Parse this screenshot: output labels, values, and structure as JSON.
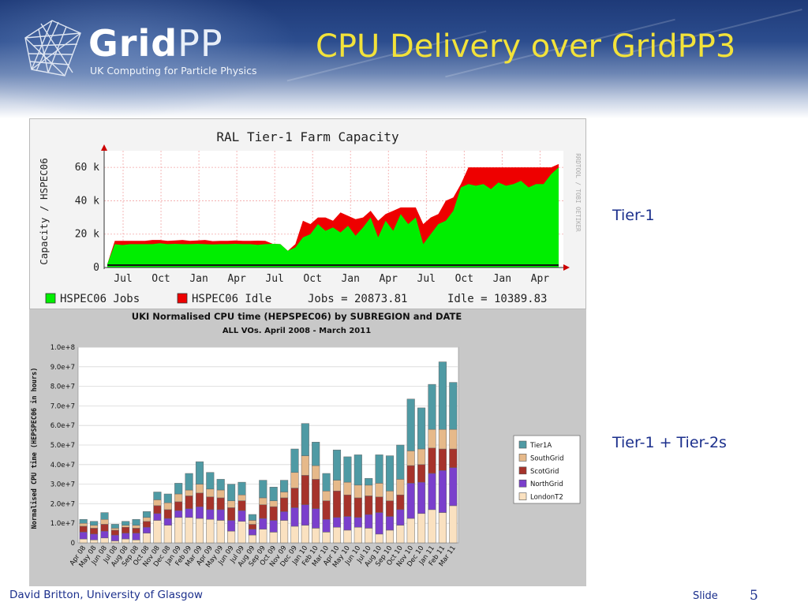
{
  "header": {
    "logo_text_grid": "Grid",
    "logo_text_pp": "PP",
    "logo_tagline": "UK Computing for Particle Physics",
    "title": "CPU Delivery over GridPP3"
  },
  "labels": {
    "tier1": "Tier-1",
    "tier12": "Tier-1 + Tier-2s"
  },
  "footer": {
    "author": "David Britton, University of Glasgow",
    "slide_label": "Slide",
    "slide_number": "5"
  },
  "colors": {
    "title": "#f2e23a",
    "label_text": "#1b2f8c",
    "rrd_jobs": "#00ee00",
    "rrd_idle": "#ee0000",
    "Tier1A": "#4f9aa4",
    "SouthGrid": "#e6b98a",
    "ScotGrid": "#a6332b",
    "NorthGrid": "#7a3fcc",
    "LondonT2": "#fae1c0"
  },
  "chart_data": [
    {
      "type": "area",
      "title": "RAL Tier-1 Farm Capacity",
      "ylabel": "Capacity / HSPEC06",
      "side_text": "RRDTOOL / TOBI OETIKER",
      "y_ticks": [
        "0",
        "20 k",
        "40 k",
        "60 k"
      ],
      "ylim": [
        0,
        70000
      ],
      "x_ticks": [
        "Jul",
        "Oct",
        "Jan",
        "Apr",
        "Jul",
        "Oct",
        "Jan",
        "Apr",
        "Jul",
        "Oct",
        "Jan",
        "Apr"
      ],
      "grid": true,
      "series": [
        {
          "name": "HSPEC06 Jobs",
          "summary_label": "Jobs = 20873.81",
          "values": [
            2000,
            14000,
            13500,
            14000,
            14000,
            14000,
            14000,
            14500,
            14000,
            14200,
            14000,
            14000,
            14200,
            14000,
            13800,
            14000,
            14000,
            14200,
            14000,
            14000,
            13600,
            14000,
            14200,
            14000,
            10000,
            12000,
            18000,
            20000,
            26000,
            22000,
            24000,
            21000,
            25000,
            19000,
            24000,
            30000,
            18000,
            28000,
            22000,
            32000,
            26000,
            30000,
            14000,
            20000,
            26000,
            28000,
            34000,
            48000,
            50000,
            49000,
            50000,
            47000,
            51000,
            49000,
            50000,
            52000,
            48000,
            50000,
            50000,
            56000,
            60000
          ]
        },
        {
          "name": "HSPEC06 Idle",
          "summary_label": "Idle = 10389.83",
          "values": [
            0,
            2000,
            2500,
            2000,
            2000,
            2000,
            2500,
            2000,
            2000,
            2000,
            2500,
            2000,
            2000,
            2500,
            2000,
            2000,
            2000,
            2000,
            2000,
            2000,
            2500,
            2000,
            0,
            0,
            0,
            2000,
            10000,
            6000,
            4000,
            8000,
            4000,
            12000,
            6000,
            10000,
            6000,
            4000,
            10000,
            4000,
            12000,
            4000,
            10000,
            6000,
            12000,
            10000,
            6000,
            12000,
            8000,
            2000,
            10000,
            11000,
            10000,
            13000,
            9000,
            11000,
            10000,
            8000,
            12000,
            10000,
            10000,
            4000,
            2000
          ]
        }
      ]
    },
    {
      "type": "bar",
      "title": "UKI Normalised CPU time (HEPSPEC06) by SUBREGION and DATE",
      "subtitle": "ALL VOs. April 2008 - March 2011",
      "ylabel": "Normalised CPU time (HEPSPEC06 in hours)",
      "y_ticks": [
        "0",
        "1.0e+7",
        "2.0e+7",
        "3.0e+7",
        "4.0e+7",
        "5.0e+7",
        "6.0e+7",
        "7.0e+7",
        "8.0e+7",
        "9.0e+7",
        "1.0e+8"
      ],
      "ylim": [
        0,
        100000000
      ],
      "categories": [
        "Apr 08",
        "May 08",
        "Jun 08",
        "Jul 08",
        "Aug 08",
        "Sep 08",
        "Oct 08",
        "Nov 08",
        "Dec 08",
        "Jan 09",
        "Feb 09",
        "Mar 09",
        "Apr 09",
        "May 09",
        "Jun 09",
        "Jul 09",
        "Aug 09",
        "Sep 09",
        "Oct 09",
        "Nov 09",
        "Dec 09",
        "Jan 10",
        "Feb 10",
        "Mar 10",
        "Apr 10",
        "May 10",
        "Jun 10",
        "Jul 10",
        "Aug 10",
        "Sep 10",
        "Oct 10",
        "Nov 10",
        "Dec 10",
        "Jan 11",
        "Feb 11",
        "Mar 11"
      ],
      "legend": [
        "Tier1A",
        "SouthGrid",
        "ScotGrid",
        "NorthGrid",
        "LondonT2"
      ],
      "series": [
        {
          "name": "LondonT2",
          "values": [
            2000000,
            1500000,
            2500000,
            1000000,
            2000000,
            1500000,
            5000000,
            11500000,
            9000000,
            13000000,
            13000000,
            12500000,
            12000000,
            11500000,
            6000000,
            11000000,
            4000000,
            7000000,
            5500000,
            11500000,
            8500000,
            9000000,
            7500000,
            5500000,
            8000000,
            6500000,
            8000000,
            7500000,
            4500000,
            6500000,
            9000000,
            12500000,
            15000000,
            17000000,
            15500000,
            19000000
          ]
        },
        {
          "name": "NorthGrid",
          "values": [
            3500000,
            3000000,
            3500000,
            3000000,
            3000000,
            3500000,
            3000000,
            3500000,
            3500000,
            3500000,
            4500000,
            6000000,
            5000000,
            5500000,
            5500000,
            5500000,
            3000000,
            5500000,
            6000000,
            4500000,
            9500000,
            10500000,
            10000000,
            6500000,
            5000000,
            7000000,
            5000000,
            7000000,
            11000000,
            7000000,
            8000000,
            18000000,
            16000000,
            18500000,
            21500000,
            19500000
          ]
        },
        {
          "name": "ScotGrid",
          "values": [
            3000000,
            3000000,
            3500000,
            2500000,
            3000000,
            2500000,
            3000000,
            4000000,
            4500000,
            4500000,
            6500000,
            7000000,
            6500000,
            6000000,
            6500000,
            5000000,
            2500000,
            7000000,
            7000000,
            7000000,
            10000000,
            15000000,
            15000000,
            9500000,
            13500000,
            11000000,
            10000000,
            9500000,
            8000000,
            8000000,
            7500000,
            9000000,
            9000000,
            13000000,
            11000000,
            9500000
          ]
        },
        {
          "name": "SouthGrid",
          "values": [
            1500000,
            1500000,
            2500000,
            1000000,
            1000000,
            1500000,
            2000000,
            3000000,
            3500000,
            4000000,
            3000000,
            4500000,
            4000000,
            4000000,
            3500000,
            3000000,
            2000000,
            3500000,
            3000000,
            3000000,
            8000000,
            10000000,
            7000000,
            5000000,
            5500000,
            6500000,
            6500000,
            5500000,
            7000000,
            5000000,
            8000000,
            7500000,
            8000000,
            9500000,
            10000000,
            10000000
          ]
        },
        {
          "name": "Tier1A",
          "values": [
            2000000,
            2000000,
            3500000,
            2000000,
            2000000,
            3000000,
            3000000,
            4000000,
            4500000,
            5500000,
            8500000,
            11500000,
            8500000,
            5500000,
            8500000,
            6500000,
            3000000,
            9000000,
            7000000,
            6000000,
            12000000,
            16500000,
            12000000,
            9000000,
            15500000,
            13000000,
            15500000,
            3500000,
            14500000,
            18000000,
            17500000,
            26500000,
            21000000,
            23000000,
            34500000,
            24000000
          ]
        }
      ]
    }
  ]
}
